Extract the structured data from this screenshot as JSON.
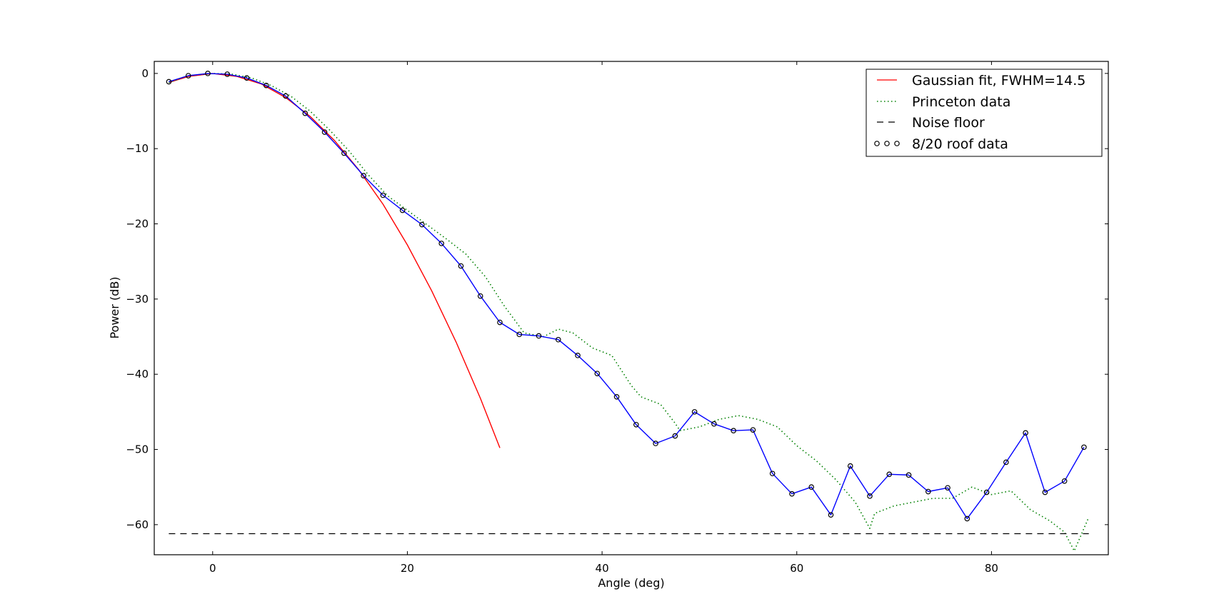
{
  "chart_data": {
    "type": "line",
    "title": "",
    "xlabel": "Angle (deg)",
    "ylabel": "Power (dB)",
    "xlim": [
      -6,
      92
    ],
    "ylim": [
      -64,
      1.6
    ],
    "xticks": [
      0,
      20,
      40,
      60,
      80
    ],
    "yticks": [
      0,
      -10,
      -20,
      -30,
      -40,
      -50,
      -60
    ],
    "xtick_labels": [
      "0",
      "20",
      "40",
      "60",
      "80"
    ],
    "ytick_labels": [
      "0",
      "−10",
      "−20",
      "−30",
      "−40",
      "−50",
      "−60"
    ],
    "grid": false,
    "legend_position": "top-right",
    "series": [
      {
        "name": "Gaussian fit, FWHM=14.5",
        "style": "solid",
        "color": "#ff0000",
        "x": [
          -4.5,
          -2.5,
          0,
          2.5,
          5,
          7.5,
          10,
          12.5,
          15,
          17.5,
          20,
          22.5,
          25,
          27.5,
          29.5
        ],
        "y": [
          -1.2,
          -0.4,
          0,
          -0.4,
          -1.4,
          -3.2,
          -5.7,
          -8.9,
          -12.8,
          -17.4,
          -22.8,
          -28.9,
          -35.7,
          -43.2,
          -49.8
        ]
      },
      {
        "name": "Princeton data",
        "style": "dotted",
        "color": "#008000",
        "x": [
          -4.5,
          -2.5,
          0,
          2,
          4,
          6,
          8,
          10,
          12,
          14,
          16,
          18,
          20,
          22,
          24,
          26,
          28,
          30,
          32,
          34,
          35.5,
          37,
          39,
          41,
          43,
          44,
          46,
          47.5,
          48,
          50,
          52,
          54,
          56,
          58,
          60,
          62,
          64,
          66,
          67.5,
          68,
          70,
          72,
          74,
          76,
          78,
          80,
          82,
          84,
          86,
          87.5,
          88.5,
          90
        ],
        "y": [
          -1.2,
          -0.3,
          0,
          -0.1,
          -0.6,
          -1.6,
          -3.0,
          -5.0,
          -7.5,
          -10.3,
          -13.5,
          -16.3,
          -18.2,
          -20.1,
          -22.0,
          -24.0,
          -27.0,
          -31.0,
          -34.5,
          -35.0,
          -34.0,
          -34.5,
          -36.5,
          -37.5,
          -41.5,
          -43.0,
          -44.0,
          -46.5,
          -47.5,
          -47.0,
          -46.0,
          -45.5,
          -46.0,
          -47.0,
          -49.5,
          -51.5,
          -54.0,
          -57.0,
          -60.5,
          -58.5,
          -57.5,
          -57.0,
          -56.5,
          -56.5,
          -55.0,
          -56.0,
          -55.5,
          -58.0,
          -59.5,
          -61.0,
          -63.5,
          -59.0
        ]
      },
      {
        "name": "Noise floor",
        "style": "dashed",
        "color": "#000000",
        "x": [
          -4.5,
          90
        ],
        "y": [
          -61.2,
          -61.2
        ]
      },
      {
        "name": "8/20 roof data",
        "style": "solid-with-circles",
        "color": "#0000ff",
        "x": [
          -4.5,
          -2.5,
          -0.5,
          1.5,
          3.5,
          5.5,
          7.5,
          9.5,
          11.5,
          13.5,
          15.5,
          17.5,
          19.5,
          21.5,
          23.5,
          25.5,
          27.5,
          29.5,
          31.5,
          33.5,
          35.5,
          37.5,
          39.5,
          41.5,
          43.5,
          45.5,
          47.5,
          49.5,
          51.5,
          53.5,
          55.5,
          57.5,
          59.5,
          61.5,
          63.5,
          65.5,
          67.5,
          69.5,
          71.5,
          73.5,
          75.5,
          77.5,
          79.5,
          81.5,
          83.5,
          85.5,
          87.5,
          89.5
        ],
        "y": [
          -1.1,
          -0.3,
          0,
          -0.1,
          -0.6,
          -1.6,
          -3.0,
          -5.3,
          -7.8,
          -10.6,
          -13.6,
          -16.2,
          -18.2,
          -20.1,
          -22.6,
          -25.6,
          -29.6,
          -33.1,
          -34.7,
          -34.9,
          -35.4,
          -37.5,
          -39.9,
          -43.0,
          -46.7,
          -49.2,
          -48.2,
          -45.0,
          -46.6,
          -47.5,
          -47.4,
          -53.2,
          -55.9,
          -55.0,
          -58.7,
          -52.2,
          -56.2,
          -53.3,
          -53.4,
          -55.6,
          -55.1,
          -59.2,
          -55.7,
          -51.7,
          -47.8,
          -55.7,
          -54.2,
          -49.7
        ]
      }
    ]
  }
}
